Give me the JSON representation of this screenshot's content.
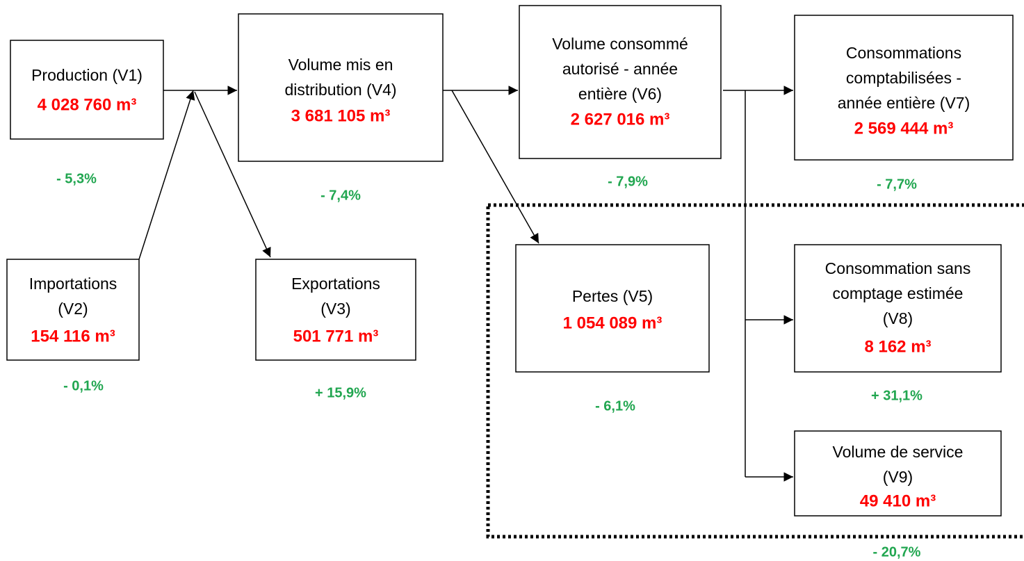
{
  "nodes": [
    {
      "lines": [
        "Production (V1)"
      ],
      "value": "4 028 760 m³",
      "change": "- 5,3%"
    },
    {
      "lines": [
        "Importations",
        "(V2)"
      ],
      "value": "154 116 m³",
      "change": "- 0,1%"
    },
    {
      "lines": [
        "Exportations",
        "(V3)"
      ],
      "value": "501 771 m³",
      "change": "+ 15,9%"
    },
    {
      "lines": [
        "Volume mis en",
        "distribution (V4)"
      ],
      "value": "3 681 105 m³",
      "change": "- 7,4%"
    },
    {
      "lines": [
        "Pertes (V5)"
      ],
      "value": "1 054 089 m³",
      "change": "- 6,1%"
    },
    {
      "lines": [
        "Volume consommé",
        "autorisé - année",
        "entière (V6)"
      ],
      "value": "2 627 016 m³",
      "change": "- 7,9%"
    },
    {
      "lines": [
        "Consommations",
        "comptabilisées -",
        "année entière (V7)"
      ],
      "value": "2 569 444 m³",
      "change": "- 7,7%"
    },
    {
      "lines": [
        "Consommation sans",
        "comptage estimée",
        "(V8)"
      ],
      "value": "8 162 m³",
      "change": "+ 31,1%"
    },
    {
      "lines": [
        "Volume de service",
        "(V9)"
      ],
      "value": "49 410 m³",
      "change": "- 20,7%"
    }
  ]
}
